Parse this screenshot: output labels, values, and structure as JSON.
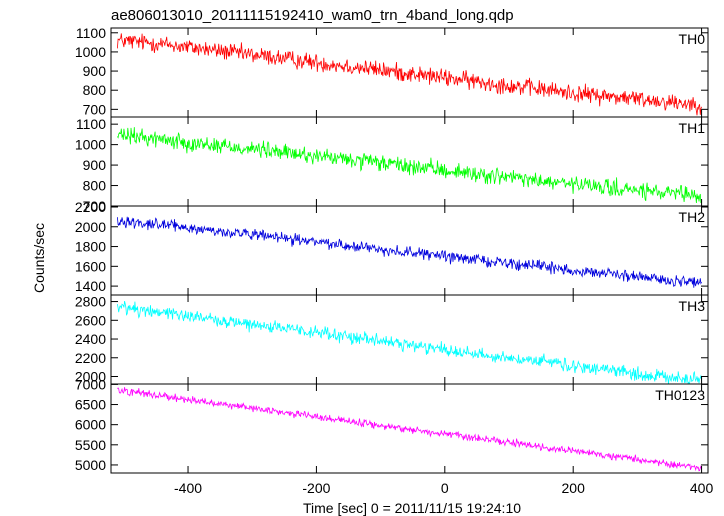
{
  "title": "ae806013010_20111115192410_wam0_trn_4band_long.qdp",
  "xlabel": "Time [sec] 0 = 2011/11/15 19:24:10",
  "ylabel": "Counts/sec",
  "chart_data": [
    {
      "type": "line",
      "name": "TH0",
      "color": "#ff0000",
      "xlim": [
        -520,
        410
      ],
      "ylim": [
        660,
        1125
      ],
      "yticks": [
        700,
        800,
        900,
        1000,
        1100
      ],
      "x": [
        -510,
        -450,
        -400,
        -350,
        -300,
        -250,
        -200,
        -150,
        -100,
        -50,
        0,
        50,
        100,
        150,
        200,
        250,
        300,
        350,
        400
      ],
      "y": [
        1060,
        1045,
        1025,
        1005,
        985,
        965,
        945,
        925,
        905,
        885,
        865,
        845,
        825,
        805,
        785,
        770,
        755,
        740,
        725
      ],
      "noise": 45
    },
    {
      "type": "line",
      "name": "TH1",
      "color": "#00ff00",
      "xlim": [
        -520,
        410
      ],
      "ylim": [
        700,
        1135
      ],
      "yticks": [
        700,
        800,
        900,
        1000,
        1100
      ],
      "x": [
        -510,
        -450,
        -400,
        -350,
        -300,
        -250,
        -200,
        -150,
        -100,
        -50,
        0,
        50,
        100,
        150,
        200,
        250,
        300,
        350,
        400
      ],
      "y": [
        1045,
        1030,
        1010,
        995,
        980,
        960,
        945,
        925,
        910,
        890,
        875,
        855,
        840,
        820,
        805,
        790,
        775,
        760,
        745
      ],
      "noise": 40
    },
    {
      "type": "line",
      "name": "TH2",
      "color": "#0000dd",
      "xlim": [
        -520,
        410
      ],
      "ylim": [
        1310,
        2210
      ],
      "yticks": [
        1400,
        1600,
        1800,
        2000,
        2200
      ],
      "x": [
        -510,
        -450,
        -400,
        -350,
        -300,
        -250,
        -200,
        -150,
        -100,
        -50,
        0,
        50,
        100,
        150,
        200,
        250,
        300,
        350,
        400
      ],
      "y": [
        2060,
        2030,
        1990,
        1950,
        1920,
        1880,
        1850,
        1810,
        1770,
        1740,
        1700,
        1670,
        1630,
        1600,
        1560,
        1530,
        1490,
        1460,
        1430
      ],
      "noise": 55
    },
    {
      "type": "line",
      "name": "TH3",
      "color": "#00ffff",
      "xlim": [
        -520,
        410
      ],
      "ylim": [
        1920,
        2870
      ],
      "yticks": [
        2000,
        2200,
        2400,
        2600,
        2800
      ],
      "x": [
        -510,
        -450,
        -400,
        -350,
        -300,
        -250,
        -200,
        -150,
        -100,
        -50,
        0,
        50,
        100,
        150,
        200,
        250,
        300,
        350,
        400
      ],
      "y": [
        2740,
        2700,
        2650,
        2600,
        2560,
        2510,
        2470,
        2420,
        2380,
        2330,
        2290,
        2240,
        2200,
        2160,
        2110,
        2070,
        2030,
        1990,
        1960
      ],
      "noise": 70
    },
    {
      "type": "line",
      "name": "TH0123",
      "color": "#ff00ff",
      "xlim": [
        -520,
        410
      ],
      "ylim": [
        4800,
        7010
      ],
      "yticks": [
        5000,
        5500,
        6000,
        6500,
        7000
      ],
      "x": [
        -510,
        -450,
        -400,
        -350,
        -300,
        -250,
        -200,
        -150,
        -100,
        -50,
        0,
        50,
        100,
        150,
        200,
        250,
        300,
        350,
        400
      ],
      "y": [
        6870,
        6740,
        6630,
        6520,
        6410,
        6300,
        6200,
        6090,
        5980,
        5870,
        5770,
        5660,
        5550,
        5450,
        5340,
        5240,
        5130,
        5030,
        4930
      ],
      "noise": 90
    }
  ],
  "xticks": [
    -400,
    -200,
    0,
    200,
    400
  ]
}
